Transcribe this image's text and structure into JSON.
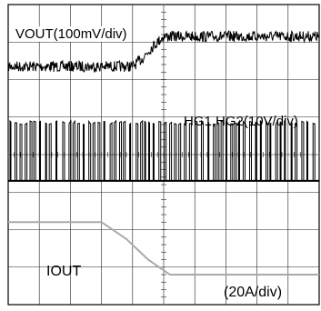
{
  "chart_data": {
    "type": "line",
    "title": "",
    "grid": true,
    "divisions": {
      "x": 10,
      "y": 8
    },
    "x_range_div": [
      0,
      10
    ],
    "series": [
      {
        "name": "VOUT",
        "label": "VOUT(100mV/div)",
        "color": "#000000",
        "noisy": true,
        "x_div": [
          0,
          4.0,
          4.3,
          4.6,
          5.0,
          10
        ],
        "y_div": [
          6.35,
          6.35,
          6.55,
          6.85,
          7.15,
          7.15
        ]
      },
      {
        "name": "HG1,HG2",
        "label": "HG1,HG2(10V/div)",
        "color": "#000000",
        "pulse_train": true,
        "baseline_div": 3.3,
        "high_div": 4.9
      },
      {
        "name": "IOUT",
        "label_name": "IOUT",
        "label_scale": "(20A/div)",
        "color": "#aaaaaa",
        "x_div": [
          0,
          3.0,
          3.8,
          4.5,
          5.2,
          10
        ],
        "y_div": [
          2.2,
          2.2,
          1.75,
          1.2,
          0.8,
          0.8
        ]
      }
    ]
  },
  "labels": {
    "vout": "VOUT(100mV/div)",
    "hg": "HG1,HG2(10V/div)",
    "iout": "IOUT",
    "iout_scale": "(20A/div)"
  }
}
